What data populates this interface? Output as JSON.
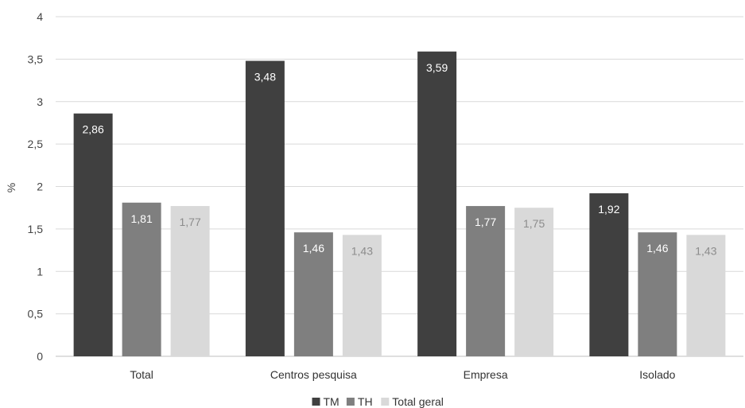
{
  "chart_data": {
    "type": "bar",
    "categories": [
      "Total",
      "Centros pesquisa",
      "Empresa",
      "Isolado"
    ],
    "series": [
      {
        "name": "TM",
        "values": [
          2.86,
          3.48,
          3.59,
          1.92
        ],
        "labels": [
          "2,86",
          "3,48",
          "3,59",
          "1,92"
        ],
        "color": "#404040",
        "label_color": "#ffffff"
      },
      {
        "name": "TH",
        "values": [
          1.81,
          1.46,
          1.77,
          1.46
        ],
        "labels": [
          "1,81",
          "1,46",
          "1,77",
          "1,46"
        ],
        "color": "#7f7f7f",
        "label_color": "#ffffff"
      },
      {
        "name": "Total geral",
        "values": [
          1.77,
          1.43,
          1.75,
          1.43
        ],
        "labels": [
          "1,77",
          "1,43",
          "1,75",
          "1,43"
        ],
        "color": "#d9d9d9",
        "label_color": "#8c8c8c"
      }
    ],
    "ylabel": "%",
    "xlabel": "",
    "ylim": [
      0,
      4
    ],
    "yticks": [
      0,
      0.5,
      1,
      1.5,
      2,
      2.5,
      3,
      3.5,
      4
    ],
    "ytick_labels": [
      "0",
      "0,5",
      "1",
      "1,5",
      "2",
      "2,5",
      "3",
      "3,5",
      "4"
    ],
    "grid": true,
    "legend_position": "bottom"
  }
}
